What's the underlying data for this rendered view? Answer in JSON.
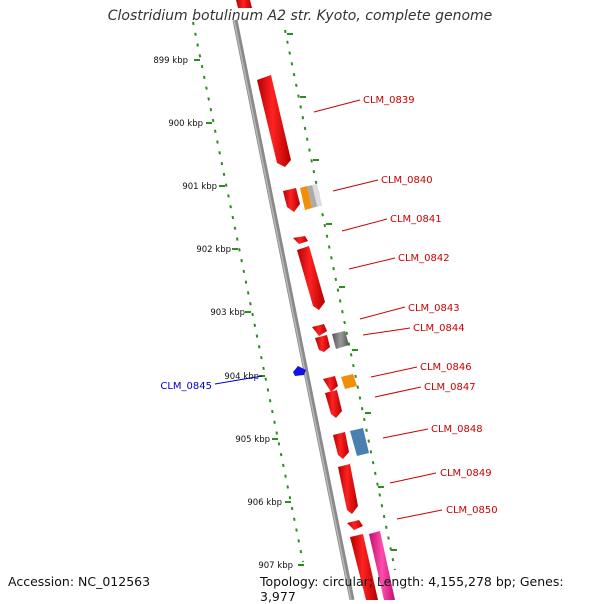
{
  "title": "Clostridium botulinum A2 str. Kyoto, complete genome",
  "footer": {
    "accession": "Accession: NC_012563",
    "stats": "Topology: circular; Length: 4,155,278 bp; Genes: 3,977"
  },
  "ruler_labels": [
    "899 kbp",
    "900 kbp",
    "901 kbp",
    "902 kbp",
    "903 kbp",
    "904 kbp",
    "905 kbp",
    "906 kbp",
    "907 kbp"
  ],
  "genes": [
    {
      "name": "CLM_0839",
      "strand": "plus",
      "color": "#cc0000"
    },
    {
      "name": "CLM_0840",
      "strand": "plus",
      "color": "#cc0000"
    },
    {
      "name": "CLM_0841",
      "strand": "plus",
      "color": "#cc0000"
    },
    {
      "name": "CLM_0842",
      "strand": "plus",
      "color": "#cc0000"
    },
    {
      "name": "CLM_0843",
      "strand": "plus",
      "color": "#cc0000"
    },
    {
      "name": "CLM_0844",
      "strand": "plus",
      "color": "#cc0000"
    },
    {
      "name": "CLM_0845",
      "strand": "minus",
      "color": "#0000cc"
    },
    {
      "name": "CLM_0846",
      "strand": "plus",
      "color": "#cc0000"
    },
    {
      "name": "CLM_0847",
      "strand": "plus",
      "color": "#cc0000"
    },
    {
      "name": "CLM_0848",
      "strand": "plus",
      "color": "#cc0000"
    },
    {
      "name": "CLM_0849",
      "strand": "plus",
      "color": "#cc0000"
    },
    {
      "name": "CLM_0850",
      "strand": "plus",
      "color": "#cc0000"
    }
  ],
  "colors": {
    "backbone": "#8c8c8c",
    "ruler": "#2e8b22",
    "gene_red": "#ee1111",
    "gene_orange": "#f0900a",
    "gene_gray": "#777777",
    "gene_blue": "#4a7fb0",
    "gene_pink": "#f0208c",
    "minus_strand": "#1111ee"
  }
}
